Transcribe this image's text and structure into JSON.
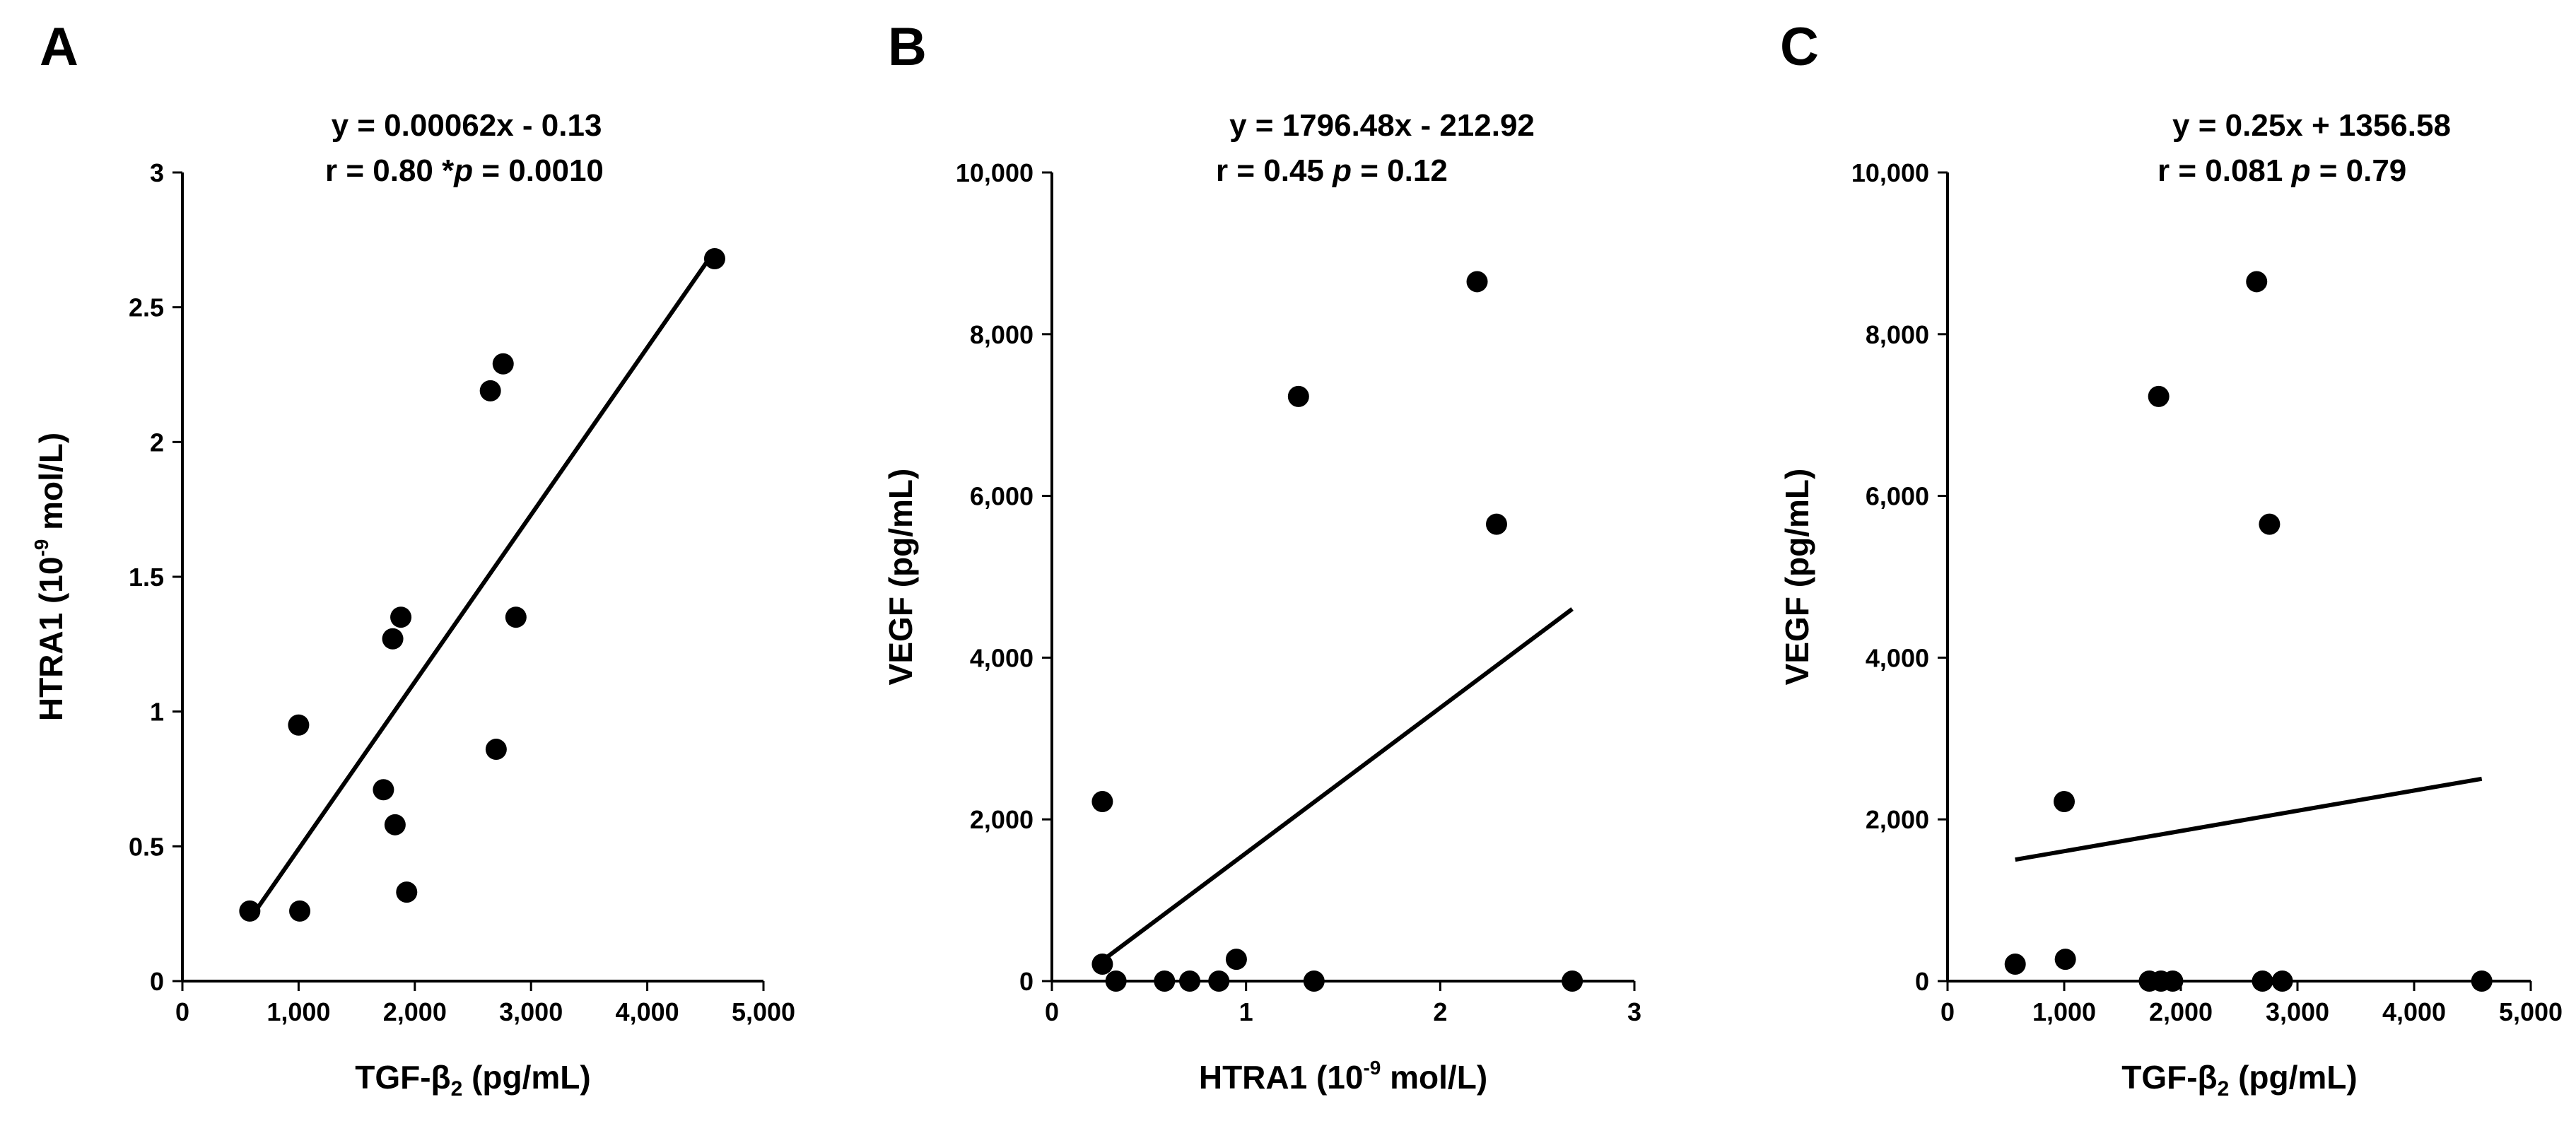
{
  "chart_data": [
    {
      "type": "scatter",
      "panel": "A",
      "equation": "y = 0.00062x - 0.13",
      "stats": {
        "r_text": "r = 0.80",
        "p_prefix": "*",
        "p_symbol": "p",
        "p_value": " = 0.0010"
      },
      "xlabel": {
        "main": "TGF-β",
        "sub": "2",
        "unit": " (pg/mL)"
      },
      "ylabel": {
        "main": "HTRA1 (10",
        "sup": "-9",
        "unit": " mol/L)"
      },
      "xlim": [
        0,
        5000
      ],
      "ylim": [
        0,
        3
      ],
      "xticks": [
        0,
        1000,
        2000,
        3000,
        4000,
        5000
      ],
      "xtick_labels": [
        "0",
        "1,000",
        "2,000",
        "3,000",
        "4,000",
        "5,000"
      ],
      "yticks": [
        0,
        0.5,
        1,
        1.5,
        2,
        2.5,
        3
      ],
      "ytick_labels": [
        "0",
        "0.5",
        "1",
        "1.5",
        "2",
        "2.5",
        "3"
      ],
      "points": [
        {
          "x": 580,
          "y": 0.26
        },
        {
          "x": 1000,
          "y": 0.95
        },
        {
          "x": 1010,
          "y": 0.26
        },
        {
          "x": 1730,
          "y": 0.71
        },
        {
          "x": 1810,
          "y": 1.27
        },
        {
          "x": 1830,
          "y": 0.58
        },
        {
          "x": 1880,
          "y": 1.35
        },
        {
          "x": 1930,
          "y": 0.33
        },
        {
          "x": 2650,
          "y": 2.19
        },
        {
          "x": 2700,
          "y": 0.86
        },
        {
          "x": 2760,
          "y": 2.29
        },
        {
          "x": 2870,
          "y": 1.35
        },
        {
          "x": 4580,
          "y": 2.68
        }
      ],
      "fit": {
        "slope": 0.00062,
        "intercept": -0.13,
        "x_range": [
          600,
          4580
        ]
      }
    },
    {
      "type": "scatter",
      "panel": "B",
      "equation": "y = 1796.48x - 212.92",
      "stats": {
        "r_text": "r = 0.45 ",
        "p_prefix": "",
        "p_symbol": "p",
        "p_value": " = 0.12"
      },
      "xlabel": {
        "main": "HTRA1 (10",
        "sup": "-9",
        "unit": " mol/L)"
      },
      "ylabel": {
        "main": "VEGF (pg/mL)",
        "sup": "",
        "unit": ""
      },
      "xlim": [
        0,
        3
      ],
      "ylim": [
        0,
        10000
      ],
      "xticks": [
        0,
        1,
        2,
        3
      ],
      "xtick_labels": [
        "0",
        "1",
        "2",
        "3"
      ],
      "yticks": [
        0,
        2000,
        4000,
        6000,
        8000,
        10000
      ],
      "ytick_labels": [
        "0",
        "2,000",
        "4,000",
        "6,000",
        "8,000",
        "10,000"
      ],
      "points": [
        {
          "x": 0.26,
          "y": 2220
        },
        {
          "x": 0.26,
          "y": 210
        },
        {
          "x": 0.33,
          "y": 0
        },
        {
          "x": 0.58,
          "y": 0
        },
        {
          "x": 0.71,
          "y": 0
        },
        {
          "x": 0.86,
          "y": 0
        },
        {
          "x": 0.95,
          "y": 270
        },
        {
          "x": 1.27,
          "y": 7230
        },
        {
          "x": 1.35,
          "y": 0
        },
        {
          "x": 2.19,
          "y": 8650
        },
        {
          "x": 2.29,
          "y": 5650
        },
        {
          "x": 2.68,
          "y": 0
        }
      ],
      "fit": {
        "slope": 1796.48,
        "intercept": -212.92,
        "x_range": [
          0.26,
          2.68
        ]
      }
    },
    {
      "type": "scatter",
      "panel": "C",
      "equation": "y = 0.25x + 1356.58",
      "stats": {
        "r_text": "r = 0.081 ",
        "p_prefix": "",
        "p_symbol": "p",
        "p_value": " = 0.79"
      },
      "xlabel": {
        "main": "TGF-β",
        "sub": "2",
        "unit": " (pg/mL)"
      },
      "ylabel": {
        "main": "VEGF (pg/mL)",
        "sup": "",
        "unit": ""
      },
      "xlim": [
        0,
        5000
      ],
      "ylim": [
        0,
        10000
      ],
      "xticks": [
        0,
        1000,
        2000,
        3000,
        4000,
        5000
      ],
      "xtick_labels": [
        "0",
        "1,000",
        "2,000",
        "3,000",
        "4,000",
        "5,000"
      ],
      "yticks": [
        0,
        2000,
        4000,
        6000,
        8000,
        10000
      ],
      "ytick_labels": [
        "0",
        "2,000",
        "4,000",
        "6,000",
        "8,000",
        "10,000"
      ],
      "points": [
        {
          "x": 580,
          "y": 210
        },
        {
          "x": 1000,
          "y": 2220
        },
        {
          "x": 1010,
          "y": 270
        },
        {
          "x": 1730,
          "y": 0
        },
        {
          "x": 1810,
          "y": 7230
        },
        {
          "x": 1830,
          "y": 0
        },
        {
          "x": 1930,
          "y": 0
        },
        {
          "x": 2650,
          "y": 8650
        },
        {
          "x": 2700,
          "y": 0
        },
        {
          "x": 2760,
          "y": 5650
        },
        {
          "x": 2870,
          "y": 0
        },
        {
          "x": 4580,
          "y": 0
        }
      ],
      "fit": {
        "slope": 0.25,
        "intercept": 1356.58,
        "x_range": [
          580,
          4580
        ]
      }
    }
  ]
}
